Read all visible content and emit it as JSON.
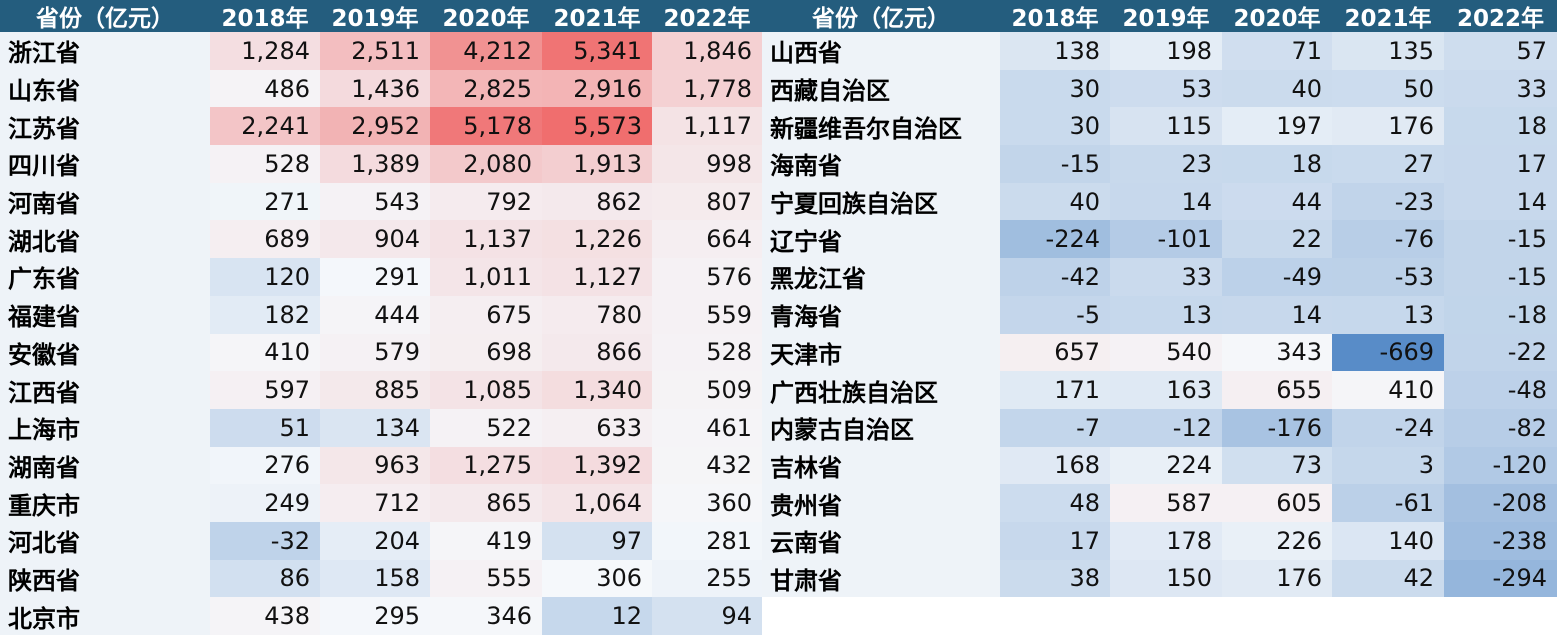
{
  "left_table": {
    "header": [
      "省份（亿元）",
      "2018年",
      "2019年",
      "2020年",
      "2021年",
      "2022年"
    ],
    "rows": [
      [
        "浙江省",
        "1,284",
        "2,511",
        "4,212",
        "5,341",
        "1,846"
      ],
      [
        "山东省",
        "486",
        "1,436",
        "2,825",
        "2,916",
        "1,778"
      ],
      [
        "江苏省",
        "2,241",
        "2,952",
        "5,178",
        "5,573",
        "1,117"
      ],
      [
        "四川省",
        "528",
        "1,389",
        "2,080",
        "1,913",
        "998"
      ],
      [
        "河南省",
        "271",
        "543",
        "792",
        "862",
        "807"
      ],
      [
        "湖北省",
        "689",
        "904",
        "1,137",
        "1,226",
        "664"
      ],
      [
        "广东省",
        "120",
        "291",
        "1,011",
        "1,127",
        "576"
      ],
      [
        "福建省",
        "182",
        "444",
        "675",
        "780",
        "559"
      ],
      [
        "安徽省",
        "410",
        "579",
        "698",
        "866",
        "528"
      ],
      [
        "江西省",
        "597",
        "885",
        "1,085",
        "1,340",
        "509"
      ],
      [
        "上海市",
        "51",
        "134",
        "522",
        "633",
        "461"
      ],
      [
        "湖南省",
        "276",
        "963",
        "1,275",
        "1,392",
        "432"
      ],
      [
        "重庆市",
        "249",
        "712",
        "865",
        "1,064",
        "360"
      ],
      [
        "河北省",
        "-32",
        "204",
        "419",
        "97",
        "281"
      ],
      [
        "陕西省",
        "86",
        "158",
        "555",
        "306",
        "255"
      ],
      [
        "北京市",
        "438",
        "295",
        "346",
        "12",
        "94"
      ]
    ]
  },
  "right_table": {
    "header": [
      "省份（亿元）",
      "2018年",
      "2019年",
      "2020年",
      "2021年",
      "2022年"
    ],
    "rows": [
      [
        "山西省",
        "138",
        "198",
        "71",
        "135",
        "57"
      ],
      [
        "西藏自治区",
        "30",
        "53",
        "40",
        "50",
        "33"
      ],
      [
        "新疆维吾尔自治区",
        "30",
        "115",
        "197",
        "176",
        "18"
      ],
      [
        "海南省",
        "-15",
        "23",
        "18",
        "27",
        "17"
      ],
      [
        "宁夏回族自治区",
        "40",
        "14",
        "44",
        "-23",
        "14"
      ],
      [
        "辽宁省",
        "-224",
        "-101",
        "22",
        "-76",
        "-15"
      ],
      [
        "黑龙江省",
        "-42",
        "33",
        "-49",
        "-53",
        "-15"
      ],
      [
        "青海省",
        "-5",
        "13",
        "14",
        "13",
        "-18"
      ],
      [
        "天津市",
        "657",
        "540",
        "343",
        "-669",
        "-22"
      ],
      [
        "广西壮族自治区",
        "171",
        "163",
        "655",
        "410",
        "-48"
      ],
      [
        "内蒙古自治区",
        "-7",
        "-12",
        "-176",
        "-24",
        "-82"
      ],
      [
        "吉林省",
        "168",
        "224",
        "73",
        "3",
        "-120"
      ],
      [
        "贵州省",
        "48",
        "587",
        "605",
        "-61",
        "-208"
      ],
      [
        "云南省",
        "17",
        "178",
        "226",
        "140",
        "-238"
      ],
      [
        "甘肃省",
        "38",
        "150",
        "176",
        "42",
        "-294"
      ]
    ]
  }
}
